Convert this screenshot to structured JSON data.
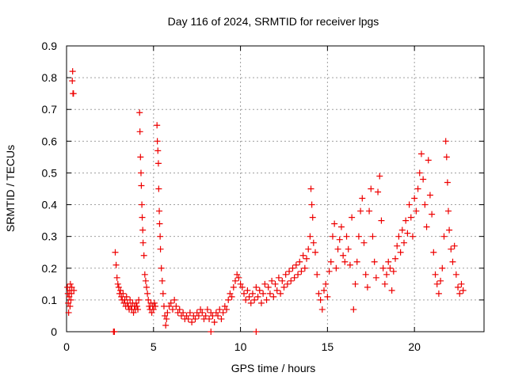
{
  "chart_data": {
    "type": "scatter",
    "title": "Day 116 of 2024, SRMTID for receiver lpgs",
    "xlabel": "GPS time / hours",
    "ylabel": "SRMTID / TECUs",
    "xlim": [
      0,
      24
    ],
    "ylim": [
      0,
      0.9
    ],
    "x_ticks": [
      0,
      5,
      10,
      15,
      20
    ],
    "x_tick_labels": [
      "0",
      "5",
      "10",
      "15",
      "20"
    ],
    "y_ticks": [
      0,
      0.1,
      0.2,
      0.3,
      0.4,
      0.5,
      0.6,
      0.7,
      0.8,
      0.9
    ],
    "y_tick_labels": [
      "0",
      "0.1",
      "0.2",
      "0.3",
      "0.4",
      "0.5",
      "0.6",
      "0.7",
      "0.8",
      "0.9"
    ],
    "grid": true,
    "marker": "plus",
    "color": "#ee0000",
    "series": [
      {
        "name": "SRMTID",
        "points": [
          [
            0.05,
            0.14
          ],
          [
            0.08,
            0.12
          ],
          [
            0.1,
            0.09
          ],
          [
            0.12,
            0.06
          ],
          [
            0.15,
            0.11
          ],
          [
            0.18,
            0.13
          ],
          [
            0.2,
            0.08
          ],
          [
            0.22,
            0.15
          ],
          [
            0.25,
            0.1
          ],
          [
            0.28,
            0.12
          ],
          [
            0.3,
            0.14
          ],
          [
            0.33,
            0.79
          ],
          [
            0.35,
            0.82
          ],
          [
            0.37,
            0.75
          ],
          [
            0.4,
            0.75
          ],
          [
            0.42,
            0.13
          ],
          [
            2.7,
            0.0
          ],
          [
            2.75,
            0.0
          ],
          [
            2.8,
            0.25
          ],
          [
            2.85,
            0.21
          ],
          [
            2.9,
            0.17
          ],
          [
            2.95,
            0.15
          ],
          [
            3.0,
            0.14
          ],
          [
            3.05,
            0.12
          ],
          [
            3.1,
            0.13
          ],
          [
            3.15,
            0.11
          ],
          [
            3.2,
            0.1
          ],
          [
            3.25,
            0.12
          ],
          [
            3.3,
            0.09
          ],
          [
            3.35,
            0.1
          ],
          [
            3.4,
            0.08
          ],
          [
            3.45,
            0.11
          ],
          [
            3.5,
            0.09
          ],
          [
            3.55,
            0.08
          ],
          [
            3.6,
            0.07
          ],
          [
            3.65,
            0.1
          ],
          [
            3.7,
            0.08
          ],
          [
            3.75,
            0.07
          ],
          [
            3.8,
            0.09
          ],
          [
            3.85,
            0.06
          ],
          [
            3.9,
            0.08
          ],
          [
            3.95,
            0.07
          ],
          [
            4.0,
            0.09
          ],
          [
            4.05,
            0.08
          ],
          [
            4.1,
            0.07
          ],
          [
            4.15,
            0.1
          ],
          [
            4.2,
            0.69
          ],
          [
            4.22,
            0.63
          ],
          [
            4.25,
            0.55
          ],
          [
            4.28,
            0.5
          ],
          [
            4.3,
            0.46
          ],
          [
            4.33,
            0.4
          ],
          [
            4.35,
            0.36
          ],
          [
            4.38,
            0.32
          ],
          [
            4.4,
            0.28
          ],
          [
            4.45,
            0.24
          ],
          [
            4.5,
            0.18
          ],
          [
            4.55,
            0.16
          ],
          [
            4.6,
            0.14
          ],
          [
            4.65,
            0.12
          ],
          [
            4.7,
            0.1
          ],
          [
            4.75,
            0.08
          ],
          [
            4.8,
            0.07
          ],
          [
            4.85,
            0.09
          ],
          [
            4.9,
            0.06
          ],
          [
            4.95,
            0.08
          ],
          [
            5.0,
            0.07
          ],
          [
            5.05,
            0.09
          ],
          [
            5.1,
            0.08
          ],
          [
            5.2,
            0.65
          ],
          [
            5.22,
            0.6
          ],
          [
            5.25,
            0.57
          ],
          [
            5.28,
            0.53
          ],
          [
            5.3,
            0.45
          ],
          [
            5.33,
            0.38
          ],
          [
            5.35,
            0.34
          ],
          [
            5.38,
            0.3
          ],
          [
            5.4,
            0.26
          ],
          [
            5.45,
            0.2
          ],
          [
            5.5,
            0.16
          ],
          [
            5.55,
            0.12
          ],
          [
            5.6,
            0.08
          ],
          [
            5.65,
            0.05
          ],
          [
            5.7,
            0.02
          ],
          [
            5.75,
            0.04
          ],
          [
            5.8,
            0.06
          ],
          [
            5.9,
            0.08
          ],
          [
            6.0,
            0.09
          ],
          [
            6.1,
            0.07
          ],
          [
            6.2,
            0.1
          ],
          [
            6.3,
            0.08
          ],
          [
            6.4,
            0.06
          ],
          [
            6.5,
            0.07
          ],
          [
            6.6,
            0.05
          ],
          [
            6.7,
            0.06
          ],
          [
            6.8,
            0.04
          ],
          [
            6.9,
            0.05
          ],
          [
            7.0,
            0.04
          ],
          [
            7.1,
            0.06
          ],
          [
            7.2,
            0.03
          ],
          [
            7.3,
            0.05
          ],
          [
            7.4,
            0.04
          ],
          [
            7.5,
            0.06
          ],
          [
            7.6,
            0.05
          ],
          [
            7.7,
            0.07
          ],
          [
            7.8,
            0.06
          ],
          [
            7.9,
            0.04
          ],
          [
            8.0,
            0.05
          ],
          [
            8.1,
            0.07
          ],
          [
            8.2,
            0.04
          ],
          [
            8.3,
            0.06
          ],
          [
            8.4,
            0.05
          ],
          [
            8.5,
            0.03
          ],
          [
            8.6,
            0.06
          ],
          [
            8.7,
            0.05
          ],
          [
            8.8,
            0.07
          ],
          [
            8.9,
            0.04
          ],
          [
            9.0,
            0.06
          ],
          [
            9.1,
            0.08
          ],
          [
            9.2,
            0.07
          ],
          [
            9.3,
            0.1
          ],
          [
            9.4,
            0.12
          ],
          [
            9.5,
            0.11
          ],
          [
            9.6,
            0.14
          ],
          [
            9.7,
            0.16
          ],
          [
            9.8,
            0.18
          ],
          [
            9.9,
            0.17
          ],
          [
            10.0,
            0.15
          ],
          [
            10.1,
            0.14
          ],
          [
            8.3,
            0.0
          ],
          [
            10.9,
            0.0
          ],
          [
            10.2,
            0.12
          ],
          [
            10.3,
            0.1
          ],
          [
            10.4,
            0.13
          ],
          [
            10.5,
            0.11
          ],
          [
            10.6,
            0.09
          ],
          [
            10.7,
            0.12
          ],
          [
            10.8,
            0.1
          ],
          [
            10.9,
            0.14
          ],
          [
            11.0,
            0.11
          ],
          [
            11.1,
            0.13
          ],
          [
            11.2,
            0.09
          ],
          [
            11.3,
            0.12
          ],
          [
            11.4,
            0.15
          ],
          [
            11.5,
            0.1
          ],
          [
            11.6,
            0.14
          ],
          [
            11.7,
            0.12
          ],
          [
            11.8,
            0.16
          ],
          [
            11.9,
            0.11
          ],
          [
            12.0,
            0.15
          ],
          [
            12.1,
            0.13
          ],
          [
            12.2,
            0.17
          ],
          [
            12.3,
            0.12
          ],
          [
            12.4,
            0.16
          ],
          [
            12.5,
            0.14
          ],
          [
            12.6,
            0.18
          ],
          [
            12.7,
            0.15
          ],
          [
            12.8,
            0.19
          ],
          [
            12.9,
            0.16
          ],
          [
            13.0,
            0.2
          ],
          [
            13.1,
            0.17
          ],
          [
            13.2,
            0.21
          ],
          [
            13.3,
            0.18
          ],
          [
            13.4,
            0.22
          ],
          [
            13.5,
            0.19
          ],
          [
            13.6,
            0.24
          ],
          [
            13.7,
            0.2
          ],
          [
            13.8,
            0.23
          ],
          [
            13.9,
            0.26
          ],
          [
            14.0,
            0.3
          ],
          [
            14.05,
            0.45
          ],
          [
            14.1,
            0.4
          ],
          [
            14.15,
            0.36
          ],
          [
            14.2,
            0.28
          ],
          [
            14.3,
            0.25
          ],
          [
            14.4,
            0.18
          ],
          [
            14.5,
            0.12
          ],
          [
            14.6,
            0.1
          ],
          [
            14.7,
            0.07
          ],
          [
            14.8,
            0.13
          ],
          [
            14.9,
            0.15
          ],
          [
            15.0,
            0.11
          ],
          [
            15.1,
            0.19
          ],
          [
            15.2,
            0.22
          ],
          [
            15.3,
            0.3
          ],
          [
            15.4,
            0.34
          ],
          [
            15.5,
            0.2
          ],
          [
            15.6,
            0.26
          ],
          [
            15.7,
            0.29
          ],
          [
            15.8,
            0.33
          ],
          [
            15.9,
            0.24
          ],
          [
            16.0,
            0.22
          ],
          [
            16.1,
            0.3
          ],
          [
            16.2,
            0.26
          ],
          [
            16.3,
            0.21
          ],
          [
            16.4,
            0.36
          ],
          [
            16.5,
            0.07
          ],
          [
            16.6,
            0.15
          ],
          [
            16.7,
            0.22
          ],
          [
            16.8,
            0.3
          ],
          [
            16.9,
            0.38
          ],
          [
            17.0,
            0.42
          ],
          [
            17.1,
            0.28
          ],
          [
            17.2,
            0.18
          ],
          [
            17.3,
            0.14
          ],
          [
            17.4,
            0.38
          ],
          [
            17.5,
            0.45
          ],
          [
            17.6,
            0.3
          ],
          [
            17.7,
            0.22
          ],
          [
            17.8,
            0.17
          ],
          [
            17.9,
            0.44
          ],
          [
            18.0,
            0.49
          ],
          [
            18.1,
            0.35
          ],
          [
            18.2,
            0.2
          ],
          [
            18.3,
            0.15
          ],
          [
            18.4,
            0.18
          ],
          [
            18.5,
            0.22
          ],
          [
            18.6,
            0.2
          ],
          [
            18.7,
            0.13
          ],
          [
            18.8,
            0.19
          ],
          [
            18.9,
            0.23
          ],
          [
            19.0,
            0.27
          ],
          [
            19.1,
            0.3
          ],
          [
            19.2,
            0.25
          ],
          [
            19.3,
            0.32
          ],
          [
            19.4,
            0.28
          ],
          [
            19.5,
            0.35
          ],
          [
            19.6,
            0.31
          ],
          [
            19.7,
            0.4
          ],
          [
            19.8,
            0.36
          ],
          [
            19.9,
            0.3
          ],
          [
            20.0,
            0.42
          ],
          [
            20.1,
            0.38
          ],
          [
            20.2,
            0.45
          ],
          [
            20.3,
            0.5
          ],
          [
            20.4,
            0.56
          ],
          [
            20.5,
            0.48
          ],
          [
            20.6,
            0.4
          ],
          [
            20.7,
            0.33
          ],
          [
            20.8,
            0.54
          ],
          [
            20.9,
            0.43
          ],
          [
            21.0,
            0.37
          ],
          [
            21.1,
            0.25
          ],
          [
            21.2,
            0.18
          ],
          [
            21.3,
            0.15
          ],
          [
            21.4,
            0.12
          ],
          [
            21.5,
            0.16
          ],
          [
            21.6,
            0.2
          ],
          [
            21.7,
            0.3
          ],
          [
            21.8,
            0.6
          ],
          [
            21.85,
            0.55
          ],
          [
            21.9,
            0.47
          ],
          [
            21.95,
            0.38
          ],
          [
            22.0,
            0.32
          ],
          [
            22.1,
            0.26
          ],
          [
            22.2,
            0.22
          ],
          [
            22.3,
            0.27
          ],
          [
            22.4,
            0.18
          ],
          [
            22.5,
            0.14
          ],
          [
            22.6,
            0.12
          ],
          [
            22.7,
            0.15
          ],
          [
            22.8,
            0.13
          ]
        ]
      }
    ]
  }
}
